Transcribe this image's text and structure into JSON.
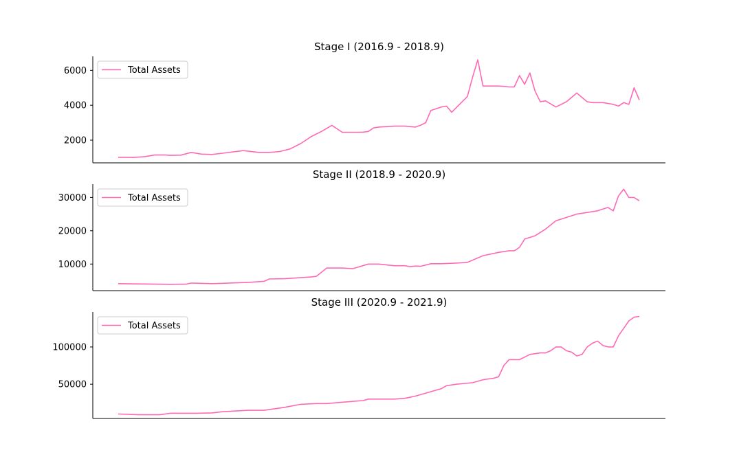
{
  "chart_data": [
    {
      "type": "line",
      "title": "Stage I (2016.9 - 2018.9)",
      "xlabel": "",
      "ylabel": "",
      "ylim": [
        700,
        6800
      ],
      "yticks": [
        2000,
        4000,
        6000
      ],
      "ytick_labels": [
        "2000",
        "4000",
        "6000"
      ],
      "legend_position": "upper-left",
      "grid": false,
      "series": [
        {
          "name": "Total Assets",
          "color": "#ff69b4",
          "x": [
            0,
            3,
            5,
            7,
            9,
            10,
            12,
            14,
            16,
            18,
            20,
            24,
            27,
            29,
            31,
            33,
            35,
            37,
            39,
            41,
            43,
            44,
            45,
            46,
            47,
            48,
            49,
            50,
            53,
            55,
            57,
            58,
            59,
            60,
            61,
            62,
            63,
            64,
            65,
            66,
            67,
            68,
            69,
            70,
            71,
            72,
            73,
            74,
            75,
            76,
            77,
            78,
            79,
            80,
            81,
            82,
            84,
            86,
            88,
            90,
            91,
            92,
            93,
            94,
            95,
            96,
            97,
            98,
            99,
            100
          ],
          "values": [
            1020,
            1010,
            1050,
            1150,
            1150,
            1130,
            1140,
            1300,
            1200,
            1180,
            1250,
            1400,
            1300,
            1300,
            1350,
            1500,
            1800,
            2200,
            2500,
            2850,
            2450,
            2450,
            2450,
            2450,
            2460,
            2500,
            2700,
            2750,
            2800,
            2800,
            2750,
            2850,
            3000,
            3700,
            3800,
            3900,
            3950,
            3600,
            3900,
            4200,
            4500,
            5600,
            6600,
            5100,
            5100,
            5100,
            5100,
            5080,
            5050,
            5050,
            5700,
            5200,
            5850,
            4800,
            4200,
            4250,
            3900,
            4200,
            4700,
            4200,
            4150,
            4150,
            4150,
            4100,
            4050,
            3950,
            4150,
            4050,
            5000,
            4300
          ]
        }
      ]
    },
    {
      "type": "line",
      "title": "Stage II (2018.9 - 2020.9)",
      "xlabel": "",
      "ylabel": "",
      "ylim": [
        2000,
        34000
      ],
      "yticks": [
        10000,
        20000,
        30000
      ],
      "ytick_labels": [
        "10000",
        "20000",
        "30000"
      ],
      "legend_position": "upper-left",
      "grid": false,
      "series": [
        {
          "name": "Total Assets",
          "color": "#ff69b4",
          "x": [
            0,
            5,
            10,
            13,
            14,
            18,
            20,
            25,
            28,
            29,
            32,
            37,
            38,
            40,
            43,
            45,
            48,
            50,
            53,
            55,
            56,
            57,
            58,
            60,
            62,
            65,
            67,
            70,
            73,
            75,
            76,
            77,
            78,
            80,
            82,
            84,
            85,
            87,
            88,
            90,
            92,
            93,
            94,
            95,
            96,
            97,
            98,
            99,
            100
          ],
          "values": [
            4100,
            4000,
            3900,
            3950,
            4300,
            4100,
            4200,
            4500,
            4800,
            5500,
            5600,
            6100,
            6300,
            8800,
            8800,
            8600,
            10000,
            10000,
            9500,
            9500,
            9200,
            9400,
            9300,
            10100,
            10100,
            10300,
            10500,
            12500,
            13500,
            14000,
            14000,
            15000,
            17500,
            18500,
            20500,
            23000,
            23500,
            24500,
            25000,
            25500,
            26000,
            26500,
            27000,
            26000,
            30500,
            32500,
            30000,
            30000,
            29000
          ]
        }
      ]
    },
    {
      "type": "line",
      "title": "Stage III (2020.9 - 2021.9)",
      "xlabel": "",
      "ylabel": "",
      "ylim": [
        4000,
        147000
      ],
      "yticks": [
        50000,
        100000
      ],
      "ytick_labels": [
        "50000",
        "100000"
      ],
      "legend_position": "upper-left",
      "grid": false,
      "series": [
        {
          "name": "Total Assets",
          "color": "#ff69b4",
          "x": [
            0,
            4,
            8,
            10,
            15,
            18,
            20,
            25,
            28,
            30,
            32,
            35,
            38,
            40,
            45,
            47,
            48,
            50,
            53,
            55,
            57,
            60,
            62,
            63,
            65,
            68,
            70,
            72,
            73,
            74,
            75,
            77,
            79,
            80,
            81,
            82,
            83,
            84,
            85,
            86,
            87,
            88,
            89,
            90,
            91,
            92,
            93,
            94,
            95,
            96,
            97,
            98,
            99,
            100
          ],
          "values": [
            10000,
            9000,
            9000,
            11000,
            11000,
            11500,
            13000,
            15000,
            15000,
            17000,
            19000,
            23000,
            24000,
            24000,
            27000,
            28000,
            30000,
            30000,
            30000,
            31000,
            34000,
            40000,
            44000,
            48000,
            50000,
            52000,
            56000,
            58000,
            60000,
            75000,
            83000,
            83000,
            90000,
            91000,
            92000,
            92000,
            95000,
            100000,
            100000,
            95000,
            93000,
            88000,
            90000,
            100000,
            105000,
            108000,
            102000,
            100000,
            100000,
            115000,
            125000,
            135000,
            140000,
            141000
          ]
        }
      ]
    }
  ]
}
